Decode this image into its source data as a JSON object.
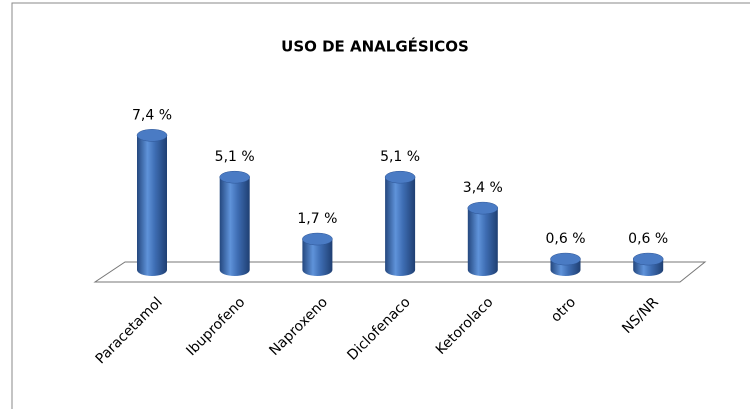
{
  "chart_data": {
    "type": "bar3d",
    "title": "USO DE ANALGÉSICOS",
    "categories": [
      "Paracetamol",
      "Ibuprofeno",
      "Naproxeno",
      "Diclofenaco",
      "Ketorolaco",
      "otro",
      "NS/NR"
    ],
    "values": [
      7.4,
      5.1,
      1.7,
      5.1,
      3.4,
      0.6,
      0.6
    ],
    "value_labels": [
      "7,4 %",
      "5,1 %",
      "1,7 %",
      "5,1 %",
      "3,4 %",
      "0,6 %",
      "0,6 %"
    ],
    "color": "#4a7bc4"
  }
}
